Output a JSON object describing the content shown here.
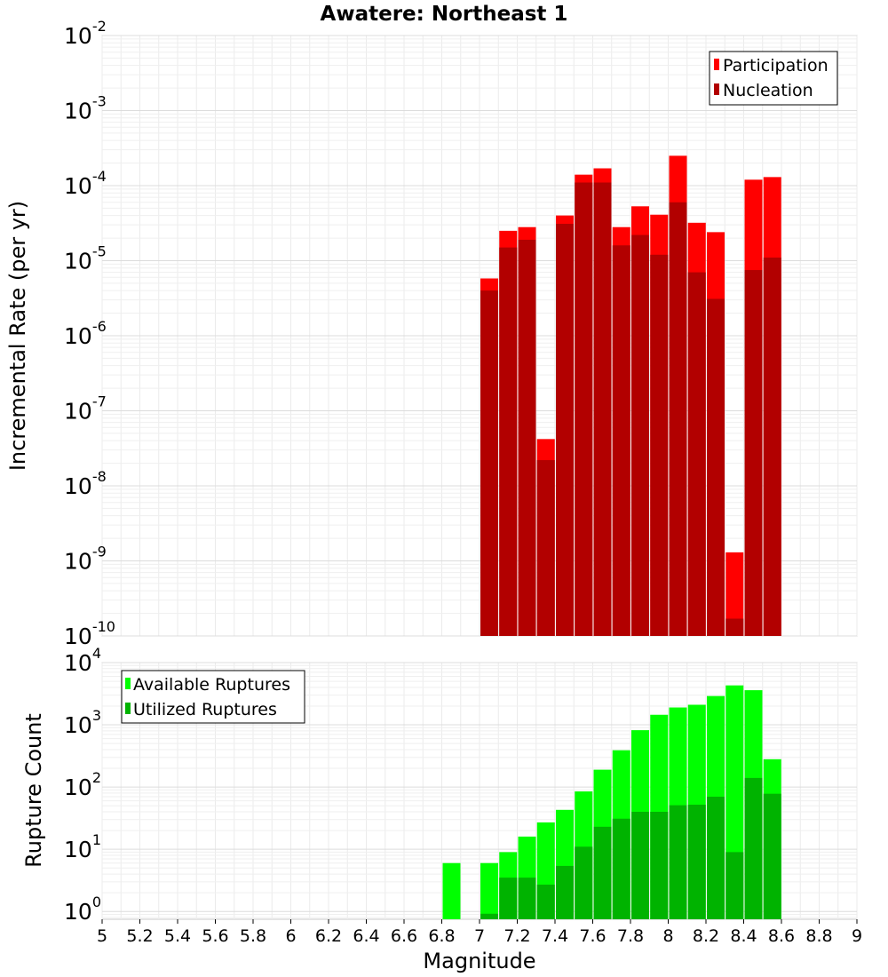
{
  "title": "Awatere: Northeast 1",
  "chart_data": [
    {
      "type": "bar",
      "name": "rate-panel",
      "ylabel": "Incremental Rate (per yr)",
      "yscale": "log",
      "ylim": [
        1e-10,
        0.01
      ],
      "ytick_labels": [
        {
          "base": "10",
          "exp": "-2"
        },
        {
          "base": "10",
          "exp": "-3"
        },
        {
          "base": "10",
          "exp": "-4"
        },
        {
          "base": "10",
          "exp": "-5"
        },
        {
          "base": "10",
          "exp": "-6"
        },
        {
          "base": "10",
          "exp": "-7"
        },
        {
          "base": "10",
          "exp": "-8"
        },
        {
          "base": "10",
          "exp": "-9"
        },
        {
          "base": "10",
          "exp": "-10"
        }
      ],
      "xlim": [
        5,
        9
      ],
      "grid": true,
      "legend_position": "top-right",
      "series": [
        {
          "name": "Participation",
          "color": "#ff0000",
          "x": [
            7.0,
            7.1,
            7.2,
            7.3,
            7.4,
            7.5,
            7.6,
            7.7,
            7.8,
            7.9,
            8.0,
            8.1,
            8.2,
            8.3,
            8.4,
            8.5
          ],
          "values": [
            5.8e-06,
            2.5e-05,
            2.8e-05,
            4.2e-08,
            4e-05,
            0.00014,
            0.00017,
            2.8e-05,
            5.3e-05,
            4.1e-05,
            0.00025,
            3.2e-05,
            2.4e-05,
            1.3e-09,
            0.00012,
            0.00013
          ]
        },
        {
          "name": "Nucleation",
          "color": "#b20000",
          "x": [
            7.0,
            7.1,
            7.2,
            7.3,
            7.4,
            7.5,
            7.6,
            7.7,
            7.8,
            7.9,
            8.0,
            8.1,
            8.2,
            8.3,
            8.4,
            8.5
          ],
          "values": [
            4e-06,
            1.5e-05,
            1.9e-05,
            2.2e-08,
            3.1e-05,
            0.00011,
            0.00011,
            1.6e-05,
            2.2e-05,
            1.2e-05,
            6e-05,
            7e-06,
            3.1e-06,
            1.7e-10,
            7.5e-06,
            1.1e-05
          ]
        }
      ]
    },
    {
      "type": "bar",
      "name": "count-panel",
      "ylabel": "Rupture Count",
      "xlabel": "Magnitude",
      "yscale": "log",
      "ylim": [
        0.75,
        10000
      ],
      "ytick_labels": [
        {
          "base": "10",
          "exp": "4",
          "value": 10000
        },
        {
          "base": "10",
          "exp": "3",
          "value": 1000
        },
        {
          "base": "10",
          "exp": "2",
          "value": 100
        },
        {
          "base": "10",
          "exp": "1",
          "value": 10
        },
        {
          "base": "10",
          "exp": "0",
          "value": 1
        }
      ],
      "xlim": [
        5,
        9
      ],
      "xtick_labels": [
        "5",
        "5.2",
        "5.4",
        "5.6",
        "5.8",
        "6",
        "6.2",
        "6.4",
        "6.6",
        "6.8",
        "7",
        "7.2",
        "7.4",
        "7.6",
        "7.8",
        "8",
        "8.2",
        "8.4",
        "8.6",
        "8.8",
        "9"
      ],
      "grid": true,
      "legend_position": "top-left",
      "series": [
        {
          "name": "Available Ruptures",
          "color": "#00ff00",
          "x": [
            6.8,
            7.0,
            7.1,
            7.2,
            7.3,
            7.4,
            7.5,
            7.6,
            7.7,
            7.8,
            7.9,
            8.0,
            8.1,
            8.2,
            8.3,
            8.4,
            8.5
          ],
          "values": [
            6,
            6,
            9,
            16,
            27,
            43,
            85,
            190,
            390,
            820,
            1450,
            1900,
            2100,
            2900,
            4300,
            3600,
            280
          ]
        },
        {
          "name": "Utilized Ruptures",
          "color": "#00b300",
          "x": [
            7.0,
            7.1,
            7.2,
            7.3,
            7.4,
            7.5,
            7.6,
            7.7,
            7.8,
            7.9,
            8.0,
            8.1,
            8.2,
            8.3,
            8.4,
            8.5
          ],
          "values": [
            0.92,
            3.5,
            3.5,
            2.7,
            5.4,
            11,
            23,
            31,
            40,
            40,
            51,
            52,
            70,
            9,
            140,
            78
          ]
        }
      ]
    }
  ]
}
